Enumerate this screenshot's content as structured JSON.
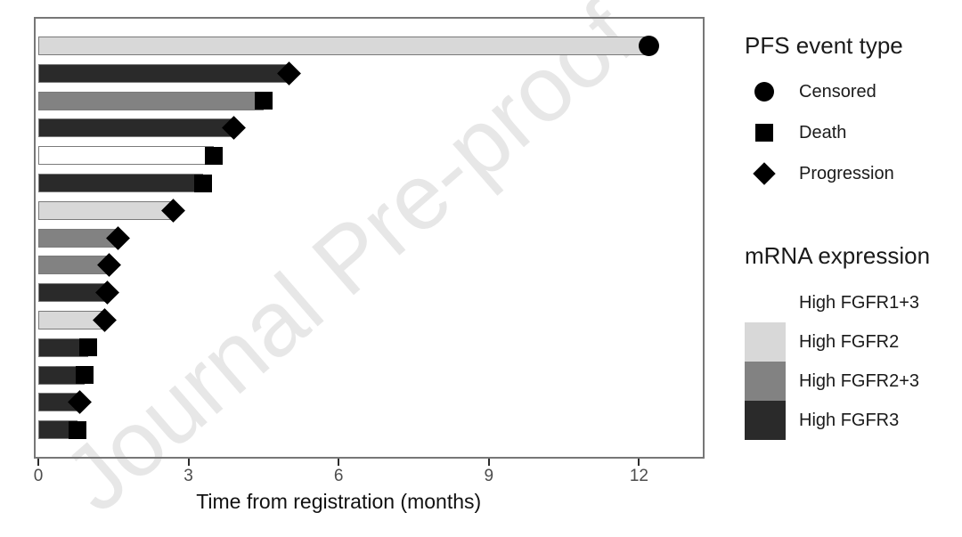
{
  "watermark": {
    "text": "Journal Pre-proof"
  },
  "legend_event": {
    "title": "PFS event type",
    "items": [
      {
        "icon": "circle-icon",
        "label": "Censored"
      },
      {
        "icon": "square-icon",
        "label": "Death"
      },
      {
        "icon": "diamond-icon",
        "label": "Progression"
      }
    ]
  },
  "legend_expression": {
    "title": "mRNA expression",
    "items": [
      {
        "label": "High FGFR1+3",
        "color": "#ffffff"
      },
      {
        "label": "High FGFR2",
        "color": "#d8d8d8"
      },
      {
        "label": "High FGFR2+3",
        "color": "#828282"
      },
      {
        "label": "High FGFR3",
        "color": "#2a2a2a"
      }
    ]
  },
  "chart_data": {
    "type": "bar",
    "orientation": "horizontal",
    "title": "",
    "xlabel": "Time from registration (months)",
    "xticks": [
      0,
      3,
      6,
      9,
      12
    ],
    "xlim": [
      0,
      13.3
    ],
    "grid": false,
    "legend_position": "right",
    "event_symbols": {
      "Censored": "circle",
      "Death": "square",
      "Progression": "diamond"
    },
    "group_colors": {
      "High FGFR1+3": "#ffffff",
      "High FGFR2": "#d8d8d8",
      "High FGFR2+3": "#828282",
      "High FGFR3": "#2a2a2a"
    },
    "marker_color": "#000000",
    "bars": [
      {
        "time_months": 12.2,
        "event": "Censored",
        "group": "High FGFR2"
      },
      {
        "time_months": 5.0,
        "event": "Progression",
        "group": "High FGFR3"
      },
      {
        "time_months": 4.5,
        "event": "Death",
        "group": "High FGFR2+3"
      },
      {
        "time_months": 3.9,
        "event": "Progression",
        "group": "High FGFR3"
      },
      {
        "time_months": 3.5,
        "event": "Death",
        "group": "High FGFR1+3"
      },
      {
        "time_months": 3.3,
        "event": "Death",
        "group": "High FGFR3"
      },
      {
        "time_months": 2.7,
        "event": "Progression",
        "group": "High FGFR2"
      },
      {
        "time_months": 1.6,
        "event": "Progression",
        "group": "High FGFR2+3"
      },
      {
        "time_months": 1.42,
        "event": "Progression",
        "group": "High FGFR2+3"
      },
      {
        "time_months": 1.38,
        "event": "Progression",
        "group": "High FGFR3"
      },
      {
        "time_months": 1.33,
        "event": "Progression",
        "group": "High FGFR2"
      },
      {
        "time_months": 1.0,
        "event": "Death",
        "group": "High FGFR3"
      },
      {
        "time_months": 0.93,
        "event": "Death",
        "group": "High FGFR3"
      },
      {
        "time_months": 0.83,
        "event": "Progression",
        "group": "High FGFR3"
      },
      {
        "time_months": 0.78,
        "event": "Death",
        "group": "High FGFR3"
      }
    ]
  },
  "colors": {
    "axis_tick_label": "#4d4d4d",
    "axis_title": "#111111",
    "panel_border": "#777777",
    "bar_border": "#7a7a7a",
    "watermark": "#e7e7e7",
    "marker": "#000000"
  }
}
